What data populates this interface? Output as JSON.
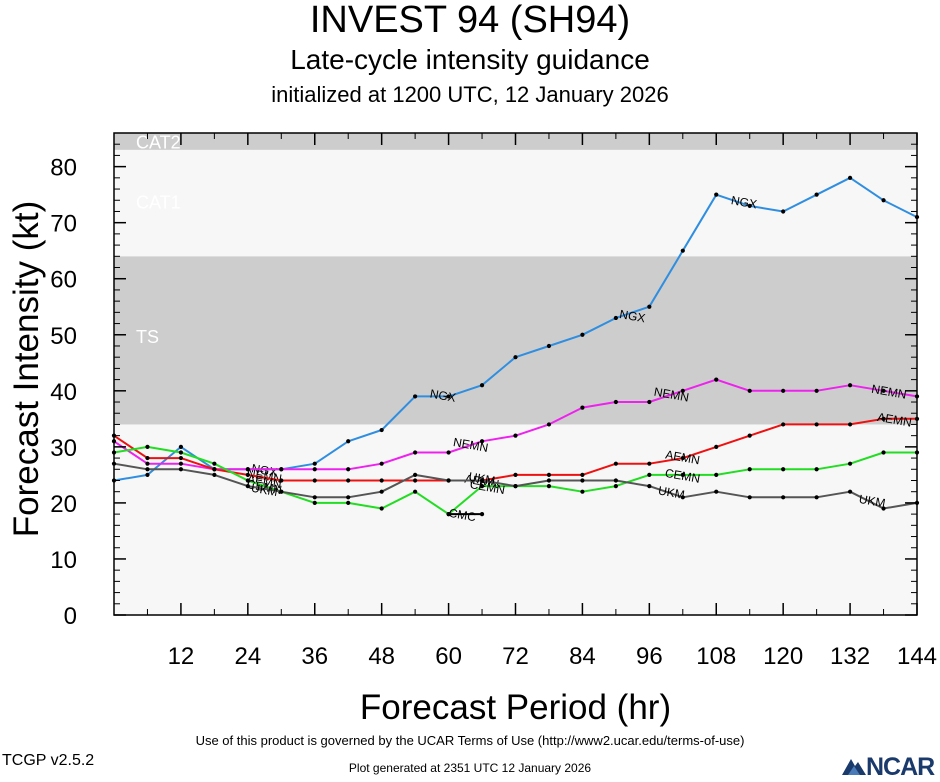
{
  "header": {
    "title": "INVEST 94 (SH94)",
    "subtitle": "Late-cycle intensity guidance",
    "init": "initialized at 1200 UTC, 12 January 2026"
  },
  "footer": {
    "terms": "Use of this product is governed by the UCAR Terms of Use (http://www2.ucar.edu/terms-of-use)",
    "version": "TCGP v2.5.2",
    "generated": "Plot generated at 2351 UTC   12 January 2026",
    "logo": "NCAR"
  },
  "colors": {
    "band_dark": "#cdcdcd",
    "band_light": "#f7f7f7",
    "band_label": "#ffffff",
    "NGX": "#2f8ee0",
    "NEMN": "#ee22ee",
    "AEMN": "#ee1111",
    "CEMN": "#22dd22",
    "UKM": "#555555",
    "CMC": "#000000"
  },
  "chart_data": {
    "type": "line",
    "xlabel": "Forecast Period (hr)",
    "ylabel": "Forecast Intensity (kt)",
    "xlim": [
      0,
      144
    ],
    "ylim": [
      0,
      86
    ],
    "xticks": [
      12,
      24,
      36,
      48,
      60,
      72,
      84,
      96,
      108,
      120,
      132,
      144
    ],
    "yticks": [
      0,
      10,
      20,
      30,
      40,
      50,
      60,
      70,
      80
    ],
    "bands": [
      {
        "label": "TS",
        "from": 34,
        "to": 64,
        "shade": "dark"
      },
      {
        "label": "CAT1",
        "from": 64,
        "to": 83,
        "shade": "light"
      },
      {
        "label": "CAT2",
        "from": 83,
        "to": 86,
        "shade": "dark"
      }
    ],
    "series": [
      {
        "name": "NGX",
        "color": "#2f8ee0",
        "x": [
          0,
          6,
          12,
          18,
          24,
          30,
          36,
          42,
          48,
          54,
          60,
          66,
          72,
          78,
          84,
          90,
          96,
          102,
          108,
          114,
          120,
          126,
          132,
          138,
          144
        ],
        "y": [
          24,
          25,
          30,
          26,
          26,
          26,
          27,
          31,
          33,
          39,
          39,
          41,
          46,
          48,
          50,
          53,
          55,
          65,
          75,
          73,
          72,
          75,
          78,
          74,
          71
        ],
        "labels": [
          [
            27,
            26
          ],
          [
            59,
            39.3
          ],
          [
            93,
            53.5
          ],
          [
            113,
            73.8
          ]
        ]
      },
      {
        "name": "NEMN",
        "color": "#ee22ee",
        "x": [
          0,
          6,
          12,
          18,
          24,
          30,
          36,
          42,
          48,
          54,
          60,
          66,
          72,
          78,
          84,
          90,
          96,
          102,
          108,
          114,
          120,
          126,
          132,
          138,
          144
        ],
        "y": [
          31,
          27,
          27,
          26,
          26,
          26,
          26,
          26,
          27,
          29,
          29,
          31,
          32,
          34,
          37,
          38,
          38,
          40,
          42,
          40,
          40,
          40,
          41,
          40,
          39
        ],
        "labels": [
          [
            27,
            25
          ],
          [
            64,
            30.5
          ],
          [
            100,
            39.5
          ],
          [
            139,
            40
          ]
        ]
      },
      {
        "name": "AEMN",
        "color": "#ee1111",
        "x": [
          0,
          6,
          12,
          18,
          24,
          30,
          36,
          42,
          48,
          54,
          60,
          66,
          72,
          78,
          84,
          90,
          96,
          102,
          108,
          114,
          120,
          126,
          132,
          138,
          144
        ],
        "y": [
          32,
          28,
          28,
          26,
          25,
          24,
          24,
          24,
          24,
          24,
          24,
          24,
          25,
          25,
          25,
          27,
          27,
          28,
          30,
          32,
          34,
          34,
          34,
          35,
          35
        ],
        "labels": [
          [
            27,
            24
          ],
          [
            66,
            24
          ],
          [
            102,
            28.3
          ],
          [
            140,
            35
          ]
        ]
      },
      {
        "name": "CEMN",
        "color": "#22dd22",
        "x": [
          0,
          6,
          12,
          18,
          24,
          30,
          36,
          42,
          48,
          54,
          60,
          66,
          72,
          78,
          84,
          90,
          96,
          102,
          108,
          114,
          120,
          126,
          132,
          138,
          144
        ],
        "y": [
          29,
          30,
          29,
          27,
          24,
          22,
          20,
          20,
          19,
          22,
          18,
          23,
          23,
          23,
          22,
          23,
          25,
          25,
          25,
          26,
          26,
          26,
          27,
          29,
          29
        ],
        "labels": [
          [
            27,
            23
          ],
          [
            67,
            23
          ],
          [
            102,
            25
          ]
        ]
      },
      {
        "name": "UKM",
        "color": "#555555",
        "x": [
          0,
          6,
          12,
          18,
          24,
          30,
          36,
          42,
          48,
          54,
          60,
          66,
          72,
          78,
          84,
          90,
          96,
          102,
          108,
          114,
          120,
          126,
          132,
          138,
          144
        ],
        "y": [
          27,
          26,
          26,
          25,
          23,
          22,
          21,
          21,
          22,
          25,
          24,
          24,
          23,
          24,
          24,
          24,
          23,
          21,
          22,
          21,
          21,
          21,
          22,
          19,
          20
        ],
        "labels": [
          [
            27,
            22.5
          ],
          [
            66,
            24.5
          ],
          [
            100,
            22
          ],
          [
            136,
            20.5
          ]
        ]
      },
      {
        "name": "CMC",
        "color": "#000000",
        "x": [
          60,
          66
        ],
        "y": [
          18,
          18
        ],
        "labels": [
          [
            62.5,
            18
          ]
        ]
      }
    ]
  }
}
